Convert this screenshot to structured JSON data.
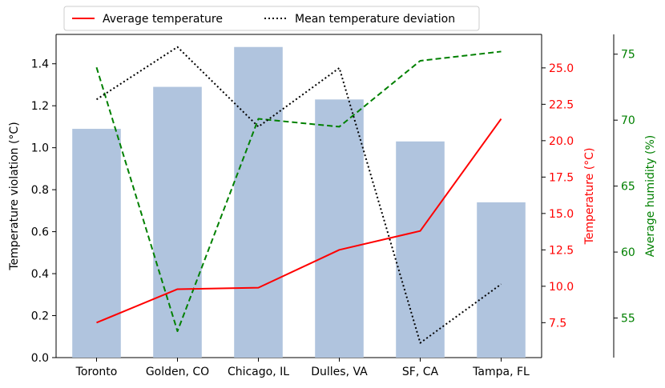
{
  "chart_data": {
    "type": "bar",
    "categories": [
      "Toronto",
      "Golden, CO",
      "Chicago, IL",
      "Dulles, VA",
      "SF, CA",
      "Tampa, FL"
    ],
    "series": [
      {
        "name": "",
        "kind": "bar",
        "axis": "left",
        "values": [
          1.09,
          1.29,
          1.48,
          1.23,
          1.03,
          0.74
        ],
        "color": "#b0c4de"
      },
      {
        "name": "Average temperature",
        "kind": "line",
        "axis": "temperature",
        "style": "solid",
        "values": [
          7.5,
          9.8,
          9.9,
          12.5,
          13.8,
          21.5
        ],
        "color": "#ff0000"
      },
      {
        "name": "Mean temperature deviation",
        "kind": "line",
        "axis": "left",
        "style": "dotted",
        "values": [
          1.23,
          1.48,
          1.1,
          1.38,
          0.07,
          0.35
        ],
        "color": "#000000"
      },
      {
        "name": "",
        "kind": "line",
        "axis": "humidity",
        "style": "dashed",
        "values": [
          74,
          54,
          70.1,
          69.5,
          74.5,
          75.2
        ],
        "color": "#008000"
      }
    ],
    "axes": {
      "left": {
        "label": "Temperature violation (°C)",
        "ylim": [
          0,
          1.54
        ],
        "ticks": [
          "0.0",
          "0.2",
          "0.4",
          "0.6",
          "0.8",
          "1.0",
          "1.2",
          "1.4"
        ],
        "color": "#000000"
      },
      "temperature": {
        "label": "Temperature (°C)",
        "ylim": [
          5.1,
          27.3
        ],
        "ticks": [
          "7.5",
          "10.0",
          "12.5",
          "15.0",
          "17.5",
          "20.0",
          "22.5",
          "25.0"
        ],
        "color": "#ff0000"
      },
      "humidity": {
        "label": "Average humidity (%)",
        "ylim": [
          52,
          76.5
        ],
        "ticks": [
          "55",
          "60",
          "65",
          "70",
          "75"
        ],
        "color": "#008000"
      }
    },
    "legend": {
      "placement": "top-left, above plot"
    },
    "grid": false
  }
}
